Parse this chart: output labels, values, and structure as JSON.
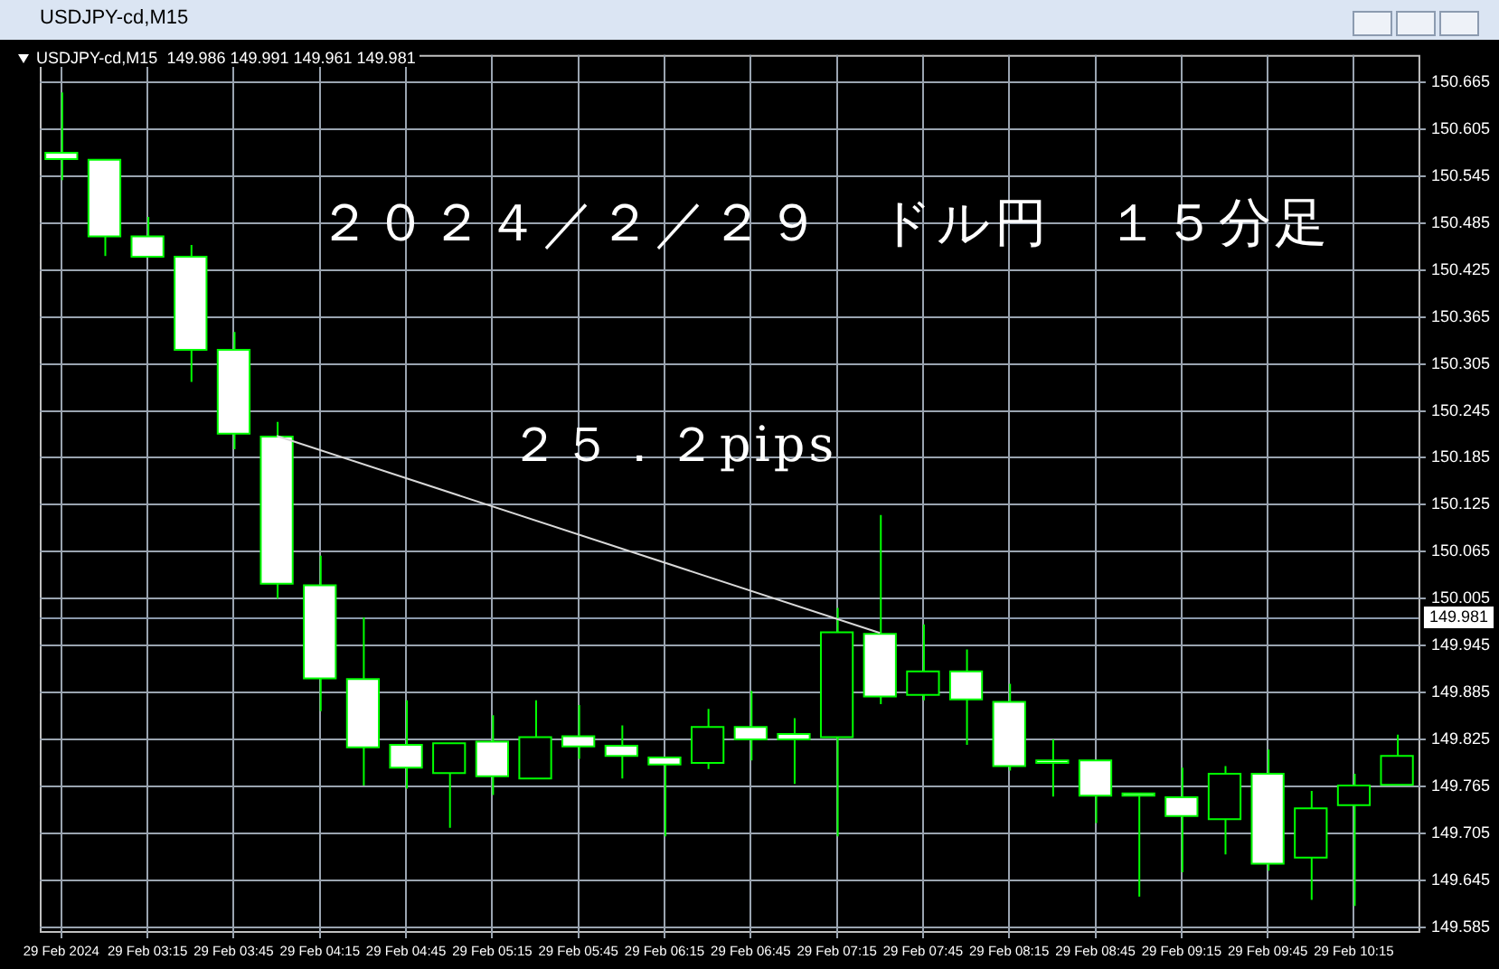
{
  "chart_data": {
    "type": "candlestick",
    "title": "２０２４／２／２９　ドル円　１５分足",
    "subtitle": "USDJPY-cd,M15  149.986 149.991 149.961 149.981",
    "annotations": [
      "USDJPY-cd,M15",
      "２５．２pips"
    ],
    "categories": [
      "29 Feb 2024",
      null,
      "29 Feb 03:15",
      null,
      "29 Feb 03:45",
      null,
      "29 Feb 04:15",
      null,
      "29 Feb 04:45",
      null,
      "29 Feb 05:15",
      null,
      "29 Feb 05:45",
      null,
      "29 Feb 06:15",
      null,
      "29 Feb 06:45",
      null,
      "29 Feb 07:15",
      null,
      "29 Feb 07:45",
      null,
      "29 Feb 08:15",
      null,
      "29 Feb 08:45",
      null,
      "29 Feb 09:15",
      null,
      "29 Feb 09:45",
      null,
      "29 Feb 10:15",
      null
    ],
    "color": "#00ff00",
    "colors": [
      "#ffffff",
      "#ffffff",
      "#ffffff",
      "#ffffff",
      "#ffffff",
      "#ffffff",
      "#ffffff",
      "#ffffff",
      "#ffffff",
      "#000000",
      "#ffffff",
      "#000000",
      "#ffffff",
      "#ffffff",
      "#ffffff",
      "#000000",
      "#ffffff",
      "#ffffff",
      "#000000",
      "#ffffff",
      "#000000",
      "#ffffff",
      "#ffffff",
      "#ffffff",
      "#ffffff",
      "#ffffff",
      "#ffffff",
      "#000000",
      "#ffffff",
      "#000000",
      "#000000",
      "#000000"
    ],
    "ohlc": [
      [
        150.575,
        150.652,
        150.54,
        150.567
      ],
      [
        150.566,
        150.566,
        150.443,
        150.468
      ],
      [
        150.468,
        150.493,
        150.442,
        150.442
      ],
      [
        150.442,
        150.457,
        150.282,
        150.323
      ],
      [
        150.323,
        150.346,
        150.196,
        150.216
      ],
      [
        150.212,
        150.231,
        150.005,
        150.024
      ],
      [
        150.022,
        150.06,
        149.861,
        149.903
      ],
      [
        149.902,
        149.981,
        149.766,
        149.815
      ],
      [
        149.818,
        149.875,
        149.762,
        149.789
      ],
      [
        149.782,
        149.82,
        149.712,
        149.82
      ],
      [
        149.822,
        149.856,
        149.754,
        149.778
      ],
      [
        149.775,
        149.875,
        149.775,
        149.828
      ],
      [
        149.829,
        149.869,
        149.8,
        149.816
      ],
      [
        149.817,
        149.843,
        149.775,
        149.804
      ],
      [
        149.802,
        149.802,
        149.701,
        149.793
      ],
      [
        149.795,
        149.864,
        149.787,
        149.841
      ],
      [
        149.841,
        149.887,
        149.798,
        149.825
      ],
      [
        149.832,
        149.852,
        149.768,
        149.825
      ],
      [
        149.828,
        149.993,
        149.701,
        149.962
      ],
      [
        149.96,
        150.112,
        149.87,
        149.88
      ],
      [
        149.882,
        149.972,
        149.875,
        149.912
      ],
      [
        149.912,
        149.94,
        149.818,
        149.876
      ],
      [
        149.873,
        149.896,
        149.785,
        149.791
      ],
      [
        149.798,
        149.825,
        149.752,
        149.795
      ],
      [
        149.798,
        149.798,
        149.718,
        149.753
      ],
      [
        149.756,
        149.756,
        149.624,
        149.753
      ],
      [
        149.751,
        149.789,
        149.655,
        149.727
      ],
      [
        149.723,
        149.791,
        149.678,
        149.781
      ],
      [
        149.781,
        149.812,
        149.657,
        149.666
      ],
      [
        149.674,
        149.759,
        149.62,
        149.737
      ],
      [
        149.741,
        149.781,
        149.612,
        149.766
      ],
      [
        149.767,
        149.831,
        149.767,
        149.804
      ]
    ],
    "series": [
      {
        "type": "line",
        "color": "#d8d8d8",
        "values": [
          null,
          null,
          null,
          null,
          null,
          150.213,
          null,
          null,
          null,
          null,
          null,
          null,
          null,
          null,
          null,
          null,
          null,
          null,
          null,
          149.961,
          null,
          null,
          null,
          null,
          null,
          null,
          null,
          null,
          null,
          null,
          null,
          null
        ]
      }
    ],
    "ref_lines": [
      {
        "axis": "y",
        "value": 149.981,
        "label": "149.981",
        "color": "#8a98aa"
      }
    ],
    "ylim": [
      149.58,
      150.7
    ],
    "yticks": [
      150.665,
      150.605,
      150.545,
      150.485,
      150.425,
      150.365,
      150.305,
      150.245,
      150.185,
      150.125,
      150.065,
      150.005,
      149.945,
      149.885,
      149.825,
      149.765,
      149.705,
      149.645,
      149.585
    ],
    "grid": true,
    "legend": false
  }
}
